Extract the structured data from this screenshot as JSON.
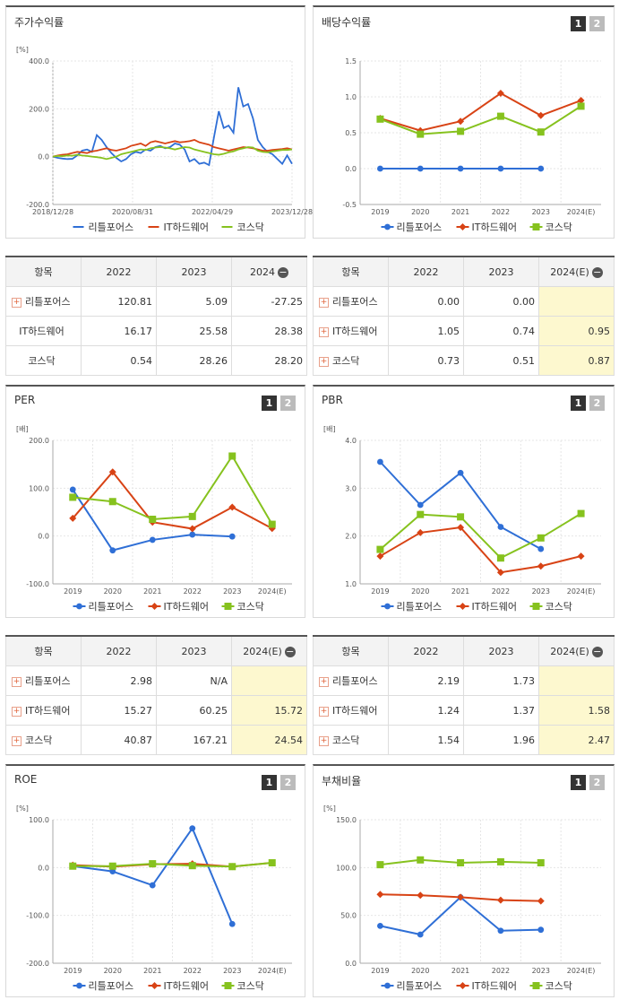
{
  "colors": {
    "s1": "#2f6fd6",
    "s2": "#d84315",
    "s3": "#86c21e"
  },
  "series_names": [
    "리틀포어스",
    "IT하드웨어",
    "코스닥"
  ],
  "panels": {
    "stock": {
      "title": "주가수익률"
    },
    "div": {
      "title": "배당수익률",
      "btn1": "1",
      "btn2": "2"
    },
    "per": {
      "title": "PER",
      "btn1": "1",
      "btn2": "2"
    },
    "pbr": {
      "title": "PBR",
      "btn1": "1",
      "btn2": "2"
    },
    "roe": {
      "title": "ROE",
      "btn1": "1",
      "btn2": "2"
    },
    "debt": {
      "title": "부채비율",
      "btn1": "1",
      "btn2": "2"
    }
  },
  "tables": {
    "stock": {
      "headers": [
        "항목",
        "2022",
        "2023",
        "2024"
      ],
      "rows": [
        {
          "name": "리틀포어스",
          "plus": true,
          "v": [
            "120.81",
            "5.09",
            "-27.25"
          ]
        },
        {
          "name": "IT하드웨어",
          "plus": false,
          "v": [
            "16.17",
            "25.58",
            "28.38"
          ]
        },
        {
          "name": "코스닥",
          "plus": false,
          "v": [
            "0.54",
            "28.26",
            "28.20"
          ]
        }
      ]
    },
    "div": {
      "headers": [
        "항목",
        "2022",
        "2023",
        "2024(E)"
      ],
      "rows": [
        {
          "name": "리틀포어스",
          "plus": true,
          "v": [
            "0.00",
            "0.00",
            ""
          ]
        },
        {
          "name": "IT하드웨어",
          "plus": true,
          "v": [
            "1.05",
            "0.74",
            "0.95"
          ]
        },
        {
          "name": "코스닥",
          "plus": true,
          "v": [
            "0.73",
            "0.51",
            "0.87"
          ]
        }
      ]
    },
    "per": {
      "headers": [
        "항목",
        "2022",
        "2023",
        "2024(E)"
      ],
      "rows": [
        {
          "name": "리틀포어스",
          "plus": true,
          "v": [
            "2.98",
            "N/A",
            ""
          ]
        },
        {
          "name": "IT하드웨어",
          "plus": true,
          "v": [
            "15.27",
            "60.25",
            "15.72"
          ]
        },
        {
          "name": "코스닥",
          "plus": true,
          "v": [
            "40.87",
            "167.21",
            "24.54"
          ]
        }
      ]
    },
    "pbr": {
      "headers": [
        "항목",
        "2022",
        "2023",
        "2024(E)"
      ],
      "rows": [
        {
          "name": "리틀포어스",
          "plus": true,
          "v": [
            "2.19",
            "1.73",
            ""
          ]
        },
        {
          "name": "IT하드웨어",
          "plus": true,
          "v": [
            "1.24",
            "1.37",
            "1.58"
          ]
        },
        {
          "name": "코스닥",
          "plus": true,
          "v": [
            "1.54",
            "1.96",
            "2.47"
          ]
        }
      ]
    }
  },
  "chart_data": [
    {
      "id": "stock",
      "type": "line",
      "unit": "[%]",
      "ylim": [
        -200,
        400
      ],
      "yticks": [
        "400.0",
        "200.0",
        "0.0",
        "-200.0"
      ],
      "xtick_labels": [
        "2018/12/28",
        "2020/08/31",
        "2022/04/29",
        "2023/12/28"
      ],
      "series": [
        {
          "name": "리틀포어스",
          "values": [
            0,
            -5,
            -8,
            -10,
            -9,
            5,
            25,
            30,
            20,
            90,
            70,
            40,
            15,
            -5,
            -20,
            -10,
            10,
            20,
            15,
            30,
            25,
            40,
            45,
            35,
            40,
            55,
            50,
            30,
            -20,
            -10,
            -30,
            -25,
            -35,
            80,
            190,
            120,
            130,
            100,
            290,
            210,
            220,
            160,
            70,
            40,
            20,
            10,
            -10,
            -30,
            5,
            -30
          ]
        },
        {
          "name": "IT하드웨어",
          "values": [
            0,
            5,
            8,
            10,
            15,
            20,
            18,
            15,
            22,
            25,
            30,
            35,
            28,
            25,
            30,
            35,
            45,
            50,
            55,
            45,
            60,
            65,
            60,
            55,
            60,
            65,
            60,
            62,
            65,
            70,
            60,
            55,
            50,
            40,
            35,
            30,
            25,
            30,
            35,
            40,
            38,
            35,
            30,
            25,
            25,
            28,
            30,
            32,
            35,
            30
          ]
        },
        {
          "name": "코스닥",
          "values": [
            0,
            3,
            2,
            5,
            4,
            8,
            5,
            3,
            0,
            -2,
            -5,
            -10,
            -5,
            0,
            10,
            15,
            20,
            25,
            30,
            28,
            35,
            38,
            40,
            38,
            35,
            30,
            35,
            40,
            38,
            30,
            25,
            20,
            15,
            10,
            8,
            12,
            18,
            22,
            30,
            35,
            40,
            38,
            25,
            20,
            18,
            22,
            25,
            28,
            28,
            30
          ]
        }
      ]
    },
    {
      "id": "div",
      "type": "line",
      "ylim": [
        -0.5,
        1.5
      ],
      "yticks": [
        "1.5",
        "1.0",
        "0.5",
        "0.0",
        "-0.5"
      ],
      "categories": [
        "2019",
        "2020",
        "2021",
        "2022",
        "2023",
        "2024(E)"
      ],
      "series": [
        {
          "name": "리틀포어스",
          "values": [
            0.0,
            0.0,
            0.0,
            0.0,
            0.0,
            null
          ]
        },
        {
          "name": "IT하드웨어",
          "values": [
            0.7,
            0.53,
            0.66,
            1.05,
            0.74,
            0.95
          ]
        },
        {
          "name": "코스닥",
          "values": [
            0.69,
            0.48,
            0.52,
            0.73,
            0.51,
            0.87
          ]
        }
      ]
    },
    {
      "id": "per",
      "type": "line",
      "unit": "[배]",
      "ylim": [
        -100,
        200
      ],
      "yticks": [
        "200.0",
        "100.0",
        "0.0",
        "-100.0"
      ],
      "categories": [
        "2019",
        "2020",
        "2021",
        "2022",
        "2023",
        "2024(E)"
      ],
      "series": [
        {
          "name": "리틀포어스",
          "values": [
            97,
            -30,
            -8,
            2.98,
            -1,
            null
          ]
        },
        {
          "name": "IT하드웨어",
          "values": [
            37,
            134,
            29,
            15.27,
            60.25,
            15.72
          ]
        },
        {
          "name": "코스닥",
          "values": [
            81,
            72,
            35,
            40.87,
            167.21,
            24.54
          ]
        }
      ]
    },
    {
      "id": "pbr",
      "type": "line",
      "unit": "[배]",
      "ylim": [
        1.0,
        4.0
      ],
      "yticks": [
        "4.0",
        "3.0",
        "2.0",
        "1.0"
      ],
      "categories": [
        "2019",
        "2020",
        "2021",
        "2022",
        "2023",
        "2024(E)"
      ],
      "series": [
        {
          "name": "리틀포어스",
          "values": [
            3.55,
            2.65,
            3.32,
            2.19,
            1.73,
            null
          ]
        },
        {
          "name": "IT하드웨어",
          "values": [
            1.58,
            2.07,
            2.18,
            1.24,
            1.37,
            1.58
          ]
        },
        {
          "name": "코스닥",
          "values": [
            1.72,
            2.45,
            2.4,
            1.54,
            1.96,
            2.47
          ]
        }
      ]
    },
    {
      "id": "roe",
      "type": "line",
      "unit": "[%]",
      "ylim": [
        -200,
        100
      ],
      "yticks": [
        "100.0",
        "0.0",
        "-100.0",
        "-200.0"
      ],
      "categories": [
        "2019",
        "2020",
        "2021",
        "2022",
        "2023",
        "2024(E)"
      ],
      "series": [
        {
          "name": "리틀포어스",
          "values": [
            3,
            -8,
            -37,
            82,
            -118,
            null
          ]
        },
        {
          "name": "IT하드웨어",
          "values": [
            5,
            2,
            7,
            8,
            2,
            10
          ]
        },
        {
          "name": "코스닥",
          "values": [
            3,
            3,
            8,
            4,
            2,
            10
          ]
        }
      ]
    },
    {
      "id": "debt",
      "type": "line",
      "unit": "[%]",
      "ylim": [
        0,
        150
      ],
      "yticks": [
        "150.0",
        "100.0",
        "50.0",
        "0.0"
      ],
      "categories": [
        "2019",
        "2020",
        "2021",
        "2022",
        "2023",
        "2024(E)"
      ],
      "series": [
        {
          "name": "리틀포어스",
          "values": [
            39,
            30,
            69,
            34,
            35,
            null
          ]
        },
        {
          "name": "IT하드웨어",
          "values": [
            72,
            71,
            69,
            66,
            65,
            null
          ]
        },
        {
          "name": "코스닥",
          "values": [
            103,
            108,
            105,
            106,
            105,
            null
          ]
        }
      ]
    }
  ]
}
